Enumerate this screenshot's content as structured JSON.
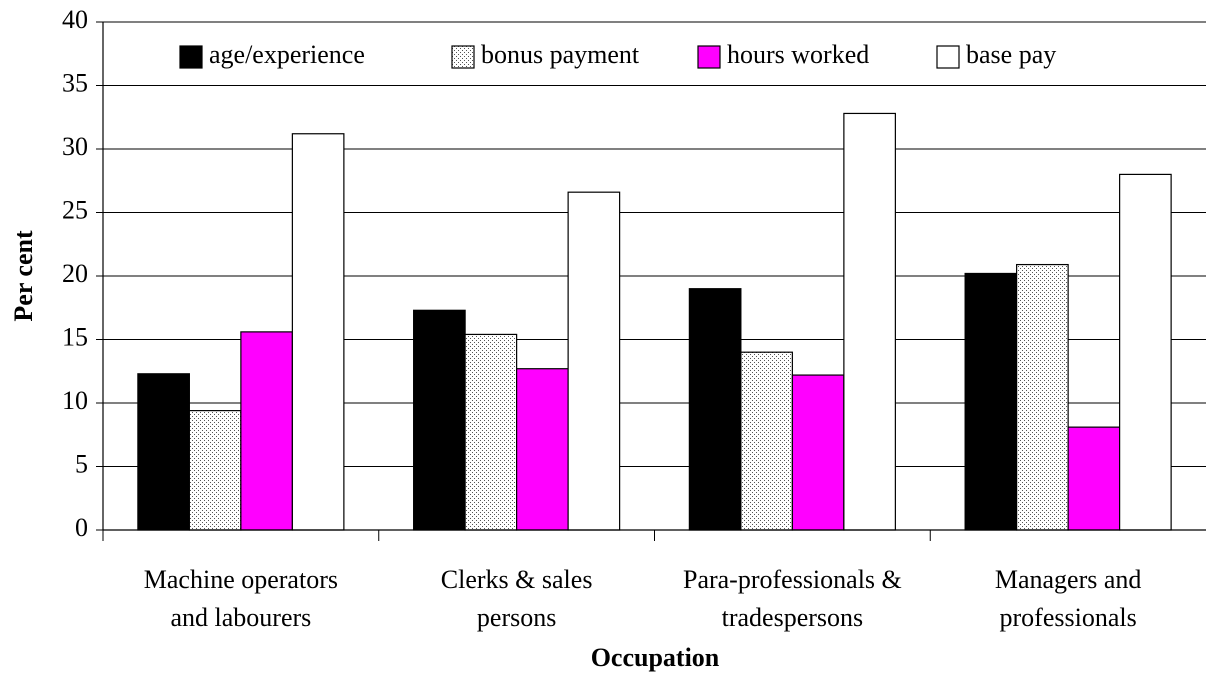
{
  "chart_data": {
    "type": "bar",
    "x_label": "Occupation",
    "y_label": "Per cent",
    "categories": [
      [
        "Machine operators",
        "and labourers"
      ],
      [
        "Clerks & sales",
        "persons"
      ],
      [
        "Para-professionals &",
        "tradespersons"
      ],
      [
        "Managers and",
        "professionals"
      ]
    ],
    "series": [
      {
        "name": "age/experience",
        "color": "#000000",
        "values": [
          12.3,
          17.3,
          19.0,
          20.2
        ]
      },
      {
        "name": "bonus payment",
        "color": "#ffffff",
        "pattern": "dots",
        "values": [
          9.4,
          15.4,
          14.0,
          20.9
        ]
      },
      {
        "name": "hours worked",
        "color": "#ff00ff",
        "values": [
          15.6,
          12.7,
          12.2,
          8.1
        ]
      },
      {
        "name": "base pay",
        "color": "#ffffff",
        "values": [
          31.2,
          26.6,
          32.8,
          28.0
        ]
      }
    ],
    "ylim": [
      0,
      40
    ],
    "yticks": [
      0,
      5,
      10,
      15,
      20,
      25,
      30,
      35,
      40
    ],
    "grid": true,
    "legend": "top"
  }
}
